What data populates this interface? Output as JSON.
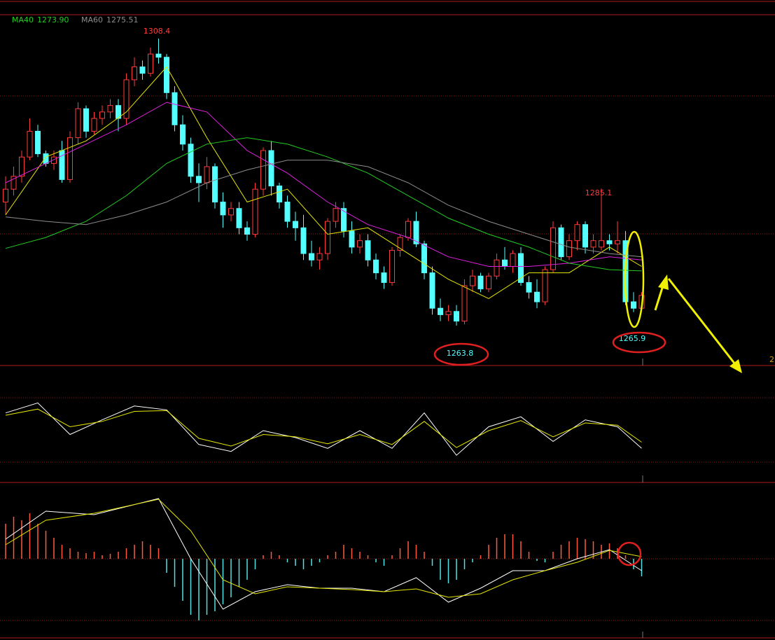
{
  "chart_data": {
    "type": "candlestick",
    "up_color": "#ff3b3b",
    "down_color": "#54ffff",
    "ylim": [
      1257.6,
      1312.0
    ],
    "candles": [
      [
        1283,
        1287,
        1281,
        1285
      ],
      [
        1285,
        1288.5,
        1284,
        1287
      ],
      [
        1287,
        1291,
        1286,
        1290
      ],
      [
        1290,
        1296,
        1289.5,
        1294
      ],
      [
        1294,
        1295,
        1290,
        1290.5
      ],
      [
        1290.5,
        1291,
        1288.5,
        1289
      ],
      [
        1289,
        1291,
        1288,
        1290
      ],
      [
        1291,
        1292.5,
        1286,
        1286.5
      ],
      [
        1286.5,
        1294,
        1286,
        1293
      ],
      [
        1293,
        1298.5,
        1292,
        1297.5
      ],
      [
        1297.5,
        1298,
        1293,
        1294
      ],
      [
        1294,
        1297,
        1293.5,
        1296
      ],
      [
        1296,
        1298,
        1295,
        1297
      ],
      [
        1297,
        1299,
        1296,
        1298
      ],
      [
        1298,
        1299,
        1294,
        1296
      ],
      [
        1296,
        1303,
        1295,
        1302
      ],
      [
        1302,
        1305.5,
        1301,
        1304
      ],
      [
        1304,
        1305,
        1302,
        1303
      ],
      [
        1303,
        1307,
        1302.5,
        1306
      ],
      [
        1306,
        1308.4,
        1304.5,
        1305.5
      ],
      [
        1305.5,
        1306,
        1299,
        1300
      ],
      [
        1300,
        1301,
        1294,
        1295
      ],
      [
        1295,
        1296.5,
        1291,
        1292
      ],
      [
        1292,
        1293,
        1286,
        1287
      ],
      [
        1287,
        1289,
        1283,
        1286
      ],
      [
        1286,
        1290,
        1285,
        1288.5
      ],
      [
        1288.5,
        1289,
        1282,
        1283
      ],
      [
        1283,
        1284.5,
        1279,
        1281
      ],
      [
        1281,
        1283,
        1280,
        1282
      ],
      [
        1282,
        1283,
        1278,
        1279
      ],
      [
        1279,
        1280,
        1277,
        1278
      ],
      [
        1278,
        1286,
        1277.5,
        1285
      ],
      [
        1285,
        1291.5,
        1284,
        1291
      ],
      [
        1291,
        1292.5,
        1284,
        1285.5
      ],
      [
        1285.5,
        1286,
        1282,
        1283
      ],
      [
        1283,
        1284,
        1279,
        1280
      ],
      [
        1280,
        1281.5,
        1277,
        1279
      ],
      [
        1279,
        1281,
        1274,
        1275
      ],
      [
        1275,
        1277,
        1273,
        1274
      ],
      [
        1274,
        1276,
        1272.5,
        1275
      ],
      [
        1275,
        1280.5,
        1274,
        1280
      ],
      [
        1280,
        1283,
        1279,
        1282
      ],
      [
        1282,
        1283,
        1277.5,
        1278.5
      ],
      [
        1278.5,
        1280,
        1275,
        1276
      ],
      [
        1276,
        1278,
        1275,
        1277
      ],
      [
        1277,
        1278,
        1273,
        1274
      ],
      [
        1274,
        1275,
        1271,
        1272
      ],
      [
        1272,
        1273,
        1269.5,
        1270.5
      ],
      [
        1270.5,
        1276,
        1270,
        1275.5
      ],
      [
        1275.5,
        1278,
        1274.5,
        1277.5
      ],
      [
        1277.5,
        1280.5,
        1277,
        1280
      ],
      [
        1280,
        1281.5,
        1276,
        1276.5
      ],
      [
        1276.5,
        1277,
        1271,
        1272
      ],
      [
        1272,
        1273,
        1265.5,
        1266.5
      ],
      [
        1266.5,
        1268,
        1264.5,
        1265.5
      ],
      [
        1265.5,
        1267,
        1264.5,
        1266
      ],
      [
        1266,
        1267,
        1263.8,
        1264.5
      ],
      [
        1264.5,
        1271,
        1264,
        1270
      ],
      [
        1270,
        1272.5,
        1269,
        1271.5
      ],
      [
        1271.5,
        1272,
        1269,
        1269.5
      ],
      [
        1269.5,
        1272,
        1269,
        1271.5
      ],
      [
        1271.5,
        1275,
        1271,
        1274
      ],
      [
        1274,
        1276,
        1272.5,
        1273
      ],
      [
        1273,
        1275.5,
        1272,
        1275
      ],
      [
        1275,
        1276,
        1270,
        1270.5
      ],
      [
        1270.5,
        1271.5,
        1268,
        1269
      ],
      [
        1269,
        1271,
        1266.5,
        1267.5
      ],
      [
        1267.5,
        1273,
        1267,
        1272.5
      ],
      [
        1272.5,
        1280,
        1272,
        1279
      ],
      [
        1279,
        1279.5,
        1274,
        1274.5
      ],
      [
        1274.5,
        1278,
        1274,
        1277
      ],
      [
        1277,
        1280,
        1275.5,
        1279.5
      ],
      [
        1279.5,
        1280,
        1275,
        1276
      ],
      [
        1276,
        1278,
        1275,
        1277
      ],
      [
        1276,
        1285.1,
        1275.5,
        1277
      ],
      [
        1277,
        1278,
        1275.5,
        1276.5
      ],
      [
        1276.5,
        1280,
        1275,
        1277
      ],
      [
        1277,
        1278.5,
        1267,
        1267.5
      ],
      [
        1267.5,
        1269,
        1265.9,
        1266.5
      ],
      [
        1266.5,
        1269,
        1266,
        1268.5
      ]
    ],
    "series": [
      {
        "color": "#e6e600",
        "x": [
          0,
          5,
          10,
          15,
          20,
          25,
          30,
          35,
          40,
          45,
          50,
          55,
          60,
          65,
          70,
          75,
          79
        ],
        "values": [
          1281,
          1290,
          1292.5,
          1297,
          1304,
          1293,
          1283,
          1285,
          1278,
          1279,
          1275,
          1271,
          1268,
          1272,
          1272,
          1276,
          1273
        ]
      },
      {
        "color": "#e020e0",
        "x": [
          0,
          5,
          10,
          15,
          20,
          25,
          30,
          35,
          40,
          45,
          50,
          55,
          60,
          65,
          70,
          75,
          79
        ],
        "values": [
          1286,
          1289,
          1292,
          1295,
          1298.5,
          1297,
          1291,
          1287.5,
          1283,
          1279.5,
          1277.5,
          1274.5,
          1273,
          1273,
          1273.5,
          1274.5,
          1274
        ]
      },
      {
        "name": "MA40",
        "value_label": "1273.90",
        "color": "#22cc22",
        "x": [
          0,
          5,
          10,
          15,
          20,
          25,
          30,
          35,
          40,
          45,
          50,
          55,
          60,
          65,
          70,
          75,
          79
        ],
        "values": [
          1275.8,
          1277.5,
          1280,
          1284,
          1289,
          1292,
          1293,
          1292,
          1290,
          1287.5,
          1284,
          1280.5,
          1278,
          1276,
          1273.5,
          1272.5,
          1272.3
        ]
      },
      {
        "name": "MA60",
        "value_label": "1275.51",
        "color": "#8c8c8c",
        "x": [
          0,
          5,
          10,
          15,
          20,
          25,
          30,
          35,
          40,
          45,
          50,
          55,
          60,
          65,
          70,
          75,
          79
        ],
        "values": [
          1280.7,
          1280,
          1279.5,
          1281,
          1283,
          1286,
          1288,
          1289.5,
          1289.5,
          1288.5,
          1286,
          1282.5,
          1280,
          1278,
          1276,
          1275,
          1274.5
        ]
      }
    ],
    "annotations": [
      "1308.4",
      "1285.1",
      "1263.8",
      "1265.9"
    ],
    "edge_label": "2",
    "oscillator": {
      "ylim": [
        0,
        100
      ],
      "x": [
        0,
        4,
        8,
        12,
        16,
        20,
        24,
        28,
        32,
        36,
        40,
        44,
        48,
        52,
        56,
        60,
        64,
        68,
        72,
        76,
        79
      ],
      "series": [
        {
          "color": "#ffffff",
          "values": [
            73,
            86,
            45,
            64,
            82,
            77,
            32,
            23,
            50,
            41,
            27,
            50,
            27,
            73,
            18,
            55,
            68,
            36,
            64,
            55,
            27
          ]
        },
        {
          "color": "#e6e600",
          "values": [
            70,
            78,
            55,
            62,
            75,
            76,
            40,
            30,
            45,
            42,
            33,
            45,
            32,
            62,
            28,
            50,
            63,
            42,
            60,
            57,
            35
          ]
        }
      ]
    },
    "macd": {
      "ylim": [
        -10,
        10
      ],
      "up_color": "#ff5a3c",
      "down_color": "#54e0e0",
      "histogram": [
        5,
        6,
        5.5,
        6.5,
        5,
        4,
        3,
        2,
        1.5,
        1,
        0.8,
        1,
        0.5,
        0.7,
        1,
        1.5,
        2,
        2.5,
        2,
        1.5,
        -2,
        -4,
        -6,
        -8,
        -8.8,
        -8,
        -7.5,
        -6.5,
        -5.5,
        -4,
        -3,
        -1.5,
        0.5,
        1,
        0.5,
        -0.5,
        -1,
        -1.5,
        -1,
        -0.5,
        0.5,
        1,
        2,
        1.5,
        1,
        0.5,
        -0.5,
        -1,
        0.5,
        1.5,
        2.5,
        2,
        1,
        -1,
        -3,
        -3.5,
        -3,
        -1.5,
        -0.5,
        0.5,
        2,
        3,
        3.5,
        3.5,
        2.5,
        1,
        -0.3,
        -0.5,
        1,
        2,
        2.5,
        3,
        2.8,
        2.5,
        2,
        2.2,
        1.5,
        0.5,
        -1.5,
        -2.5
      ],
      "x": [
        0,
        5,
        11,
        19,
        23,
        27,
        31,
        35,
        39,
        43,
        47,
        51,
        55,
        59,
        63,
        67,
        71,
        75,
        79
      ],
      "series": [
        {
          "color": "#ffffff",
          "values": [
            2.8,
            6.8,
            6.3,
            8.6,
            0,
            -7.2,
            -4.7,
            -3.7,
            -4.2,
            -4.2,
            -4.7,
            -2.7,
            -6.2,
            -4.2,
            -1.7,
            -1.7,
            0,
            1.3,
            -1.7
          ]
        },
        {
          "color": "#e6e600",
          "values": [
            2,
            5.5,
            6.5,
            8.5,
            4,
            -3,
            -5,
            -4,
            -4.2,
            -4.4,
            -4.7,
            -4.3,
            -5.5,
            -5,
            -3,
            -1.7,
            -0.5,
            1.2,
            0.3
          ]
        }
      ]
    }
  }
}
